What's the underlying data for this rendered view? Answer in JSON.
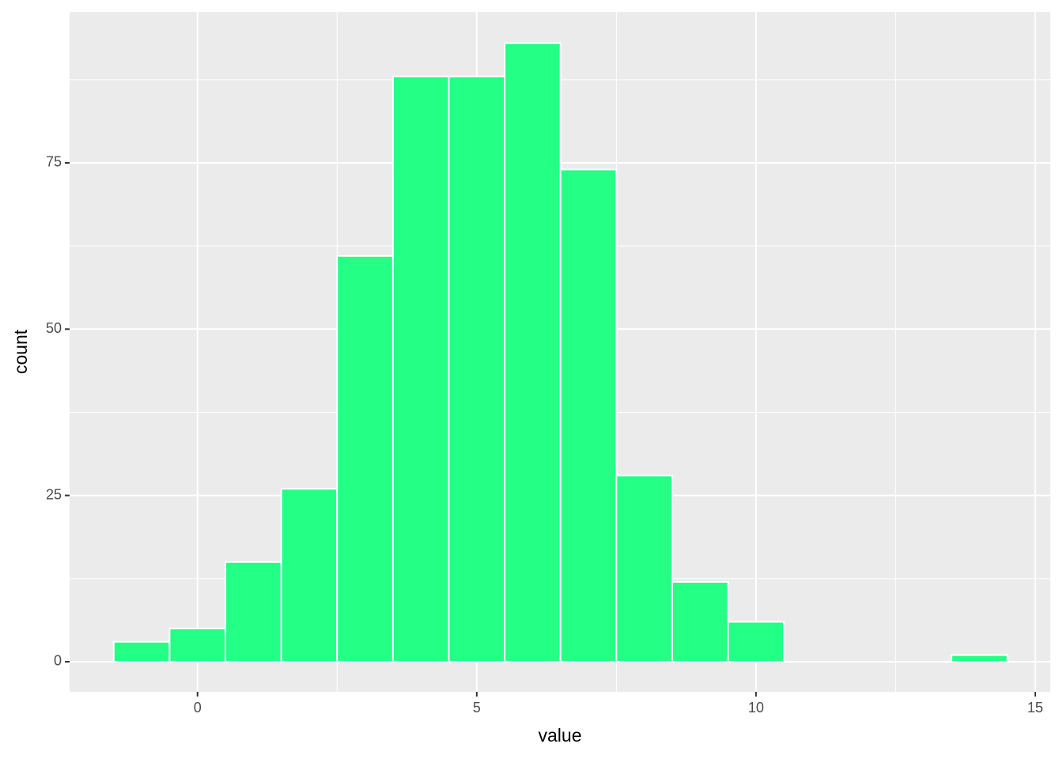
{
  "chart_data": {
    "type": "histogram",
    "x_label": "value",
    "y_label": "count",
    "bins": [
      -1.5,
      -0.5,
      0.5,
      1.5,
      2.5,
      3.5,
      4.5,
      5.5,
      6.5,
      7.5,
      8.5,
      9.5,
      10.5,
      11.5,
      12.5,
      13.5,
      14.5
    ],
    "values": [
      3,
      5,
      15,
      26,
      61,
      88,
      88,
      93,
      74,
      28,
      12,
      6,
      0,
      0,
      0,
      1
    ],
    "color": "#24ff86",
    "xlim": [
      -2.29,
      15.27
    ],
    "xticks": [
      0,
      5,
      10,
      15
    ],
    "xminor": [
      2.5,
      7.5,
      12.5
    ],
    "ylim": [
      -4.52,
      97.7
    ],
    "yticks": [
      0,
      25,
      50,
      75
    ],
    "yminor": [
      12.5,
      37.5,
      62.5,
      87.5
    ],
    "grid": true
  }
}
